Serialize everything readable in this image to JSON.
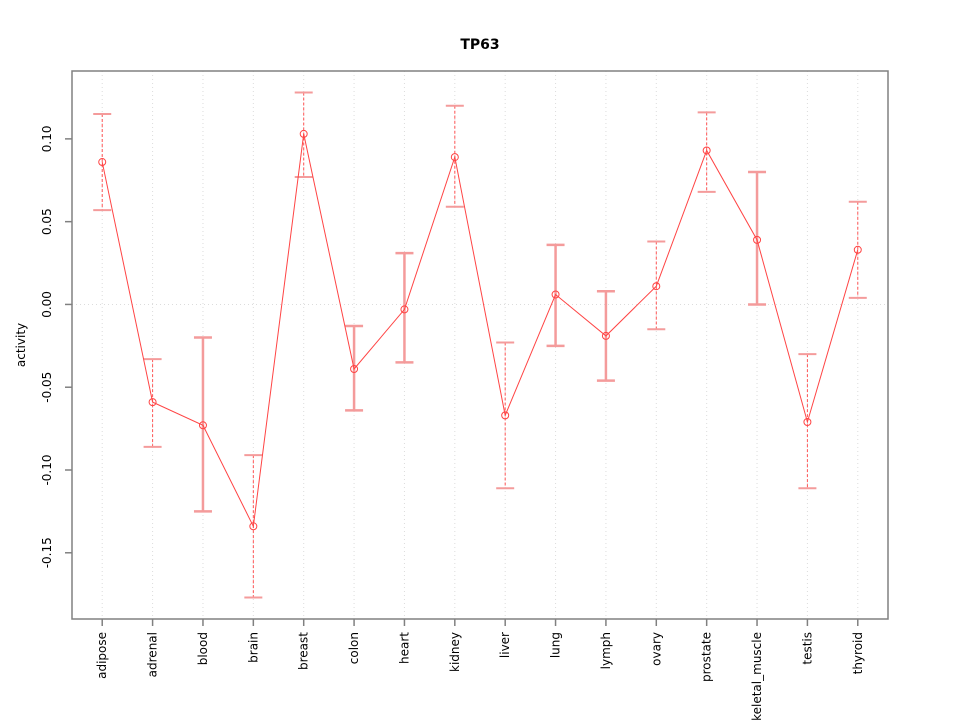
{
  "chart_data": {
    "type": "line",
    "title": "TP63",
    "xlabel": "",
    "ylabel": "activity",
    "categories": [
      "adipose",
      "adrenal",
      "blood",
      "brain",
      "breast",
      "colon",
      "heart",
      "kidney",
      "liver",
      "lung",
      "lymph",
      "ovary",
      "prostate",
      "skeletal_muscle",
      "testis",
      "thyroid"
    ],
    "series": [
      {
        "name": "TP63 activity",
        "values": [
          0.086,
          -0.059,
          -0.073,
          -0.134,
          0.103,
          -0.039,
          -0.003,
          0.089,
          -0.067,
          0.006,
          -0.019,
          0.011,
          0.093,
          0.039,
          -0.071,
          0.033
        ],
        "ci_lower": [
          0.057,
          -0.086,
          -0.125,
          -0.177,
          0.077,
          -0.064,
          -0.035,
          0.059,
          -0.111,
          -0.025,
          -0.046,
          -0.015,
          0.068,
          0.0,
          -0.111,
          0.004
        ],
        "ci_upper": [
          0.115,
          -0.033,
          -0.02,
          -0.091,
          0.128,
          -0.013,
          0.031,
          0.12,
          -0.023,
          0.036,
          0.008,
          0.038,
          0.116,
          0.08,
          -0.03,
          0.062
        ]
      }
    ],
    "error_bar_styles": [
      "thin",
      "thin",
      "thick",
      "thin",
      "thin",
      "thick",
      "thick",
      "thin",
      "thin",
      "thick",
      "thick",
      "thin",
      "thin",
      "thick",
      "thin",
      "thin"
    ],
    "y_ticks": [
      -0.15,
      -0.1,
      -0.05,
      0.0,
      0.05,
      0.1
    ],
    "y_tick_labels": [
      "-0.15",
      "-0.10",
      "-0.05",
      "0.00",
      "0.05",
      "0.10"
    ],
    "ylim": [
      -0.19,
      0.141
    ],
    "grid": "dotted vertical line at each category; dotted horizontal line at y=0",
    "legend_position": "none",
    "marker": "open-circle",
    "colors": {
      "line": "#ff4444",
      "marker": "#ff4444",
      "error_stem_thin": "#ff5555",
      "error_thick": "#f49b9b",
      "error_cap": "#f49b9b",
      "grid": "#dcdcdc",
      "frame": "#808080",
      "tick": "#808080",
      "text": "#000000",
      "background": "#ffffff"
    }
  }
}
